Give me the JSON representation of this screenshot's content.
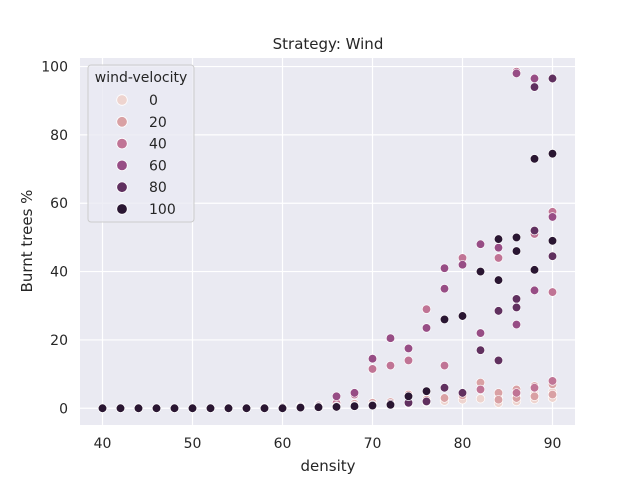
{
  "chart_data": {
    "type": "scatter",
    "title": "Strategy: Wind",
    "xlabel": "density",
    "ylabel": "Burnt trees %",
    "xlim": [
      37.5,
      92.5
    ],
    "ylim": [
      -4.9,
      102.5
    ],
    "xticks": [
      40,
      50,
      60,
      70,
      80,
      90
    ],
    "yticks": [
      0,
      20,
      40,
      60,
      80,
      100
    ],
    "grid": true,
    "background": "#eaeaf2",
    "legend": {
      "title": "wind-velocity",
      "placement": "top-left",
      "entries": [
        {
          "label": "0",
          "color": "#eed4cf"
        },
        {
          "label": "20",
          "color": "#d9a1a4"
        },
        {
          "label": "40",
          "color": "#c07495"
        },
        {
          "label": "60",
          "color": "#974d85"
        },
        {
          "label": "80",
          "color": "#60305f"
        },
        {
          "label": "100",
          "color": "#2a1632"
        }
      ]
    },
    "series": [
      {
        "name": "0",
        "color": "#eed4cf",
        "points": [
          [
            40,
            0
          ],
          [
            42,
            0
          ],
          [
            44,
            0
          ],
          [
            46,
            0
          ],
          [
            48,
            0
          ],
          [
            50,
            0
          ],
          [
            52,
            0
          ],
          [
            54,
            0
          ],
          [
            56,
            0
          ],
          [
            58,
            0.1
          ],
          [
            60,
            0.2
          ],
          [
            62,
            0.3
          ],
          [
            64,
            0.4
          ],
          [
            66,
            0.5
          ],
          [
            68,
            0.7
          ],
          [
            70,
            0.9
          ],
          [
            72,
            1.1
          ],
          [
            74,
            1.4
          ],
          [
            76,
            1.8
          ],
          [
            78,
            2.1
          ],
          [
            80,
            2.5
          ],
          [
            82,
            2.8
          ],
          [
            84,
            3.2
          ],
          [
            86,
            3.5
          ],
          [
            88,
            4.2
          ],
          [
            90,
            4.8
          ],
          [
            84,
            1.5
          ],
          [
            86,
            2.0
          ],
          [
            88,
            2.6
          ],
          [
            90,
            3.0
          ]
        ]
      },
      {
        "name": "20",
        "color": "#d9a1a4",
        "points": [
          [
            40,
            0
          ],
          [
            42,
            0
          ],
          [
            44,
            0
          ],
          [
            46,
            0
          ],
          [
            48,
            0
          ],
          [
            50,
            0
          ],
          [
            52,
            0
          ],
          [
            54,
            0
          ],
          [
            56,
            0
          ],
          [
            58,
            0.1
          ],
          [
            60,
            0.4
          ],
          [
            62,
            0.6
          ],
          [
            64,
            1.0
          ],
          [
            66,
            1.0
          ],
          [
            68,
            1.3
          ],
          [
            70,
            1.6
          ],
          [
            72,
            1.8
          ],
          [
            74,
            4.0
          ],
          [
            76,
            2.5
          ],
          [
            78,
            3.0
          ],
          [
            80,
            3.8
          ],
          [
            82,
            7.5
          ],
          [
            84,
            4.5
          ],
          [
            86,
            5.5
          ],
          [
            88,
            6.5
          ],
          [
            90,
            7.0
          ],
          [
            84,
            2.5
          ],
          [
            86,
            3.0
          ],
          [
            88,
            3.5
          ],
          [
            90,
            4.0
          ]
        ]
      },
      {
        "name": "40",
        "color": "#c07495",
        "points": [
          [
            40,
            0
          ],
          [
            42,
            0
          ],
          [
            44,
            0
          ],
          [
            46,
            0
          ],
          [
            48,
            0
          ],
          [
            50,
            0
          ],
          [
            52,
            0
          ],
          [
            54,
            0
          ],
          [
            56,
            0
          ],
          [
            58,
            0.1
          ],
          [
            60,
            0.3
          ],
          [
            62,
            0.5
          ],
          [
            64,
            0.8
          ],
          [
            66,
            1.5
          ],
          [
            68,
            4.0
          ],
          [
            70,
            11.5
          ],
          [
            72,
            12.5
          ],
          [
            74,
            14.0
          ],
          [
            76,
            29.0
          ],
          [
            78,
            12.5
          ],
          [
            80,
            44.0
          ],
          [
            82,
            5.5
          ],
          [
            84,
            44.0
          ],
          [
            86,
            98.5
          ],
          [
            88,
            6.0
          ],
          [
            90,
            57.5
          ],
          [
            88,
            51.0
          ],
          [
            90,
            34.0
          ],
          [
            86,
            4.5
          ],
          [
            90,
            8.0
          ]
        ]
      },
      {
        "name": "60",
        "color": "#974d85",
        "points": [
          [
            40,
            0
          ],
          [
            42,
            0
          ],
          [
            44,
            0
          ],
          [
            46,
            0
          ],
          [
            48,
            0
          ],
          [
            50,
            0
          ],
          [
            52,
            0
          ],
          [
            54,
            0
          ],
          [
            56,
            0
          ],
          [
            58,
            0.1
          ],
          [
            60,
            0.3
          ],
          [
            62,
            0.5
          ],
          [
            64,
            0.8
          ],
          [
            66,
            3.5
          ],
          [
            68,
            4.5
          ],
          [
            70,
            14.5
          ],
          [
            72,
            20.5
          ],
          [
            74,
            17.5
          ],
          [
            76,
            23.5
          ],
          [
            78,
            41.0
          ],
          [
            80,
            42.0
          ],
          [
            82,
            48.0
          ],
          [
            84,
            47.0
          ],
          [
            86,
            98.0
          ],
          [
            88,
            96.5
          ],
          [
            90,
            56.0
          ],
          [
            78,
            35.0
          ],
          [
            82,
            22.0
          ],
          [
            86,
            24.5
          ],
          [
            88,
            34.5
          ]
        ]
      },
      {
        "name": "80",
        "color": "#60305f",
        "points": [
          [
            40,
            0
          ],
          [
            42,
            0
          ],
          [
            44,
            0
          ],
          [
            46,
            0
          ],
          [
            48,
            0
          ],
          [
            50,
            0
          ],
          [
            52,
            0
          ],
          [
            54,
            0
          ],
          [
            56,
            0
          ],
          [
            58,
            0.1
          ],
          [
            60,
            0.2
          ],
          [
            62,
            0.3
          ],
          [
            64,
            0.5
          ],
          [
            66,
            0.6
          ],
          [
            68,
            0.8
          ],
          [
            70,
            1.0
          ],
          [
            72,
            1.3
          ],
          [
            74,
            1.6
          ],
          [
            76,
            2.0
          ],
          [
            78,
            6.0
          ],
          [
            80,
            4.5
          ],
          [
            82,
            17.0
          ],
          [
            84,
            14.0
          ],
          [
            86,
            32.0
          ],
          [
            88,
            94.0
          ],
          [
            90,
            96.5
          ],
          [
            84,
            28.5
          ],
          [
            86,
            29.5
          ],
          [
            88,
            52.0
          ],
          [
            90,
            44.5
          ]
        ]
      },
      {
        "name": "100",
        "color": "#2a1632",
        "points": [
          [
            40,
            0
          ],
          [
            42,
            0
          ],
          [
            44,
            0
          ],
          [
            46,
            0
          ],
          [
            48,
            0
          ],
          [
            50,
            0
          ],
          [
            52,
            0
          ],
          [
            54,
            0
          ],
          [
            56,
            0
          ],
          [
            58,
            0
          ],
          [
            60,
            0
          ],
          [
            62,
            0.2
          ],
          [
            64,
            0.3
          ],
          [
            66,
            0.4
          ],
          [
            68,
            0.6
          ],
          [
            70,
            0.8
          ],
          [
            72,
            1.0
          ],
          [
            74,
            3.5
          ],
          [
            76,
            5.0
          ],
          [
            78,
            26.0
          ],
          [
            80,
            27.0
          ],
          [
            82,
            40.0
          ],
          [
            84,
            49.5
          ],
          [
            86,
            50.0
          ],
          [
            88,
            73.0
          ],
          [
            90,
            74.5
          ],
          [
            84,
            37.5
          ],
          [
            86,
            46.0
          ],
          [
            88,
            40.5
          ],
          [
            90,
            49.0
          ]
        ]
      }
    ]
  }
}
